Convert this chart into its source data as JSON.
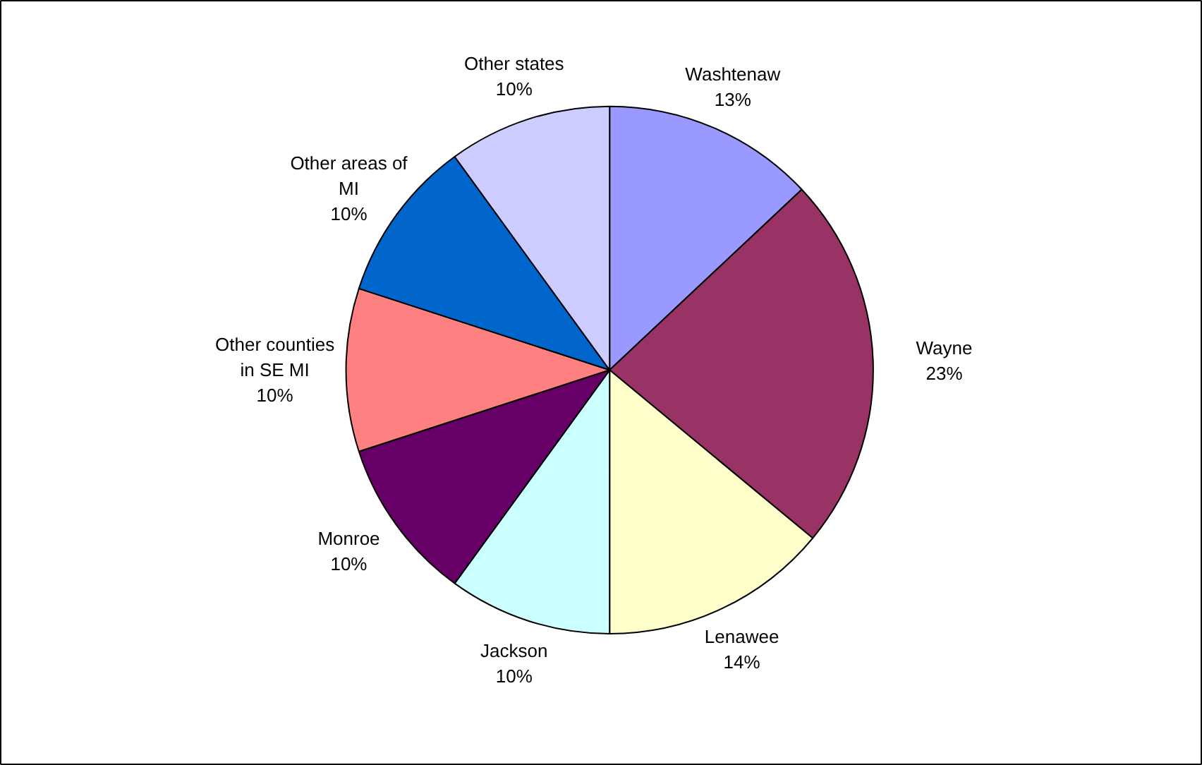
{
  "chart_data": {
    "type": "pie",
    "categories": [
      "Washtenaw",
      "Wayne",
      "Lenawee",
      "Jackson",
      "Monroe",
      "Other counties in SE MI",
      "Other areas of MI",
      "Other states"
    ],
    "values": [
      13,
      23,
      14,
      10,
      10,
      10,
      10,
      10
    ],
    "colors": [
      "#9999ff",
      "#993366",
      "#ffffcc",
      "#ccffff",
      "#660066",
      "#ff8080",
      "#0066cc",
      "#ccccff"
    ],
    "value_labels": [
      "13%",
      "23%",
      "14%",
      "10%",
      "10%",
      "10%",
      "10%",
      "10%"
    ],
    "legend": false
  }
}
